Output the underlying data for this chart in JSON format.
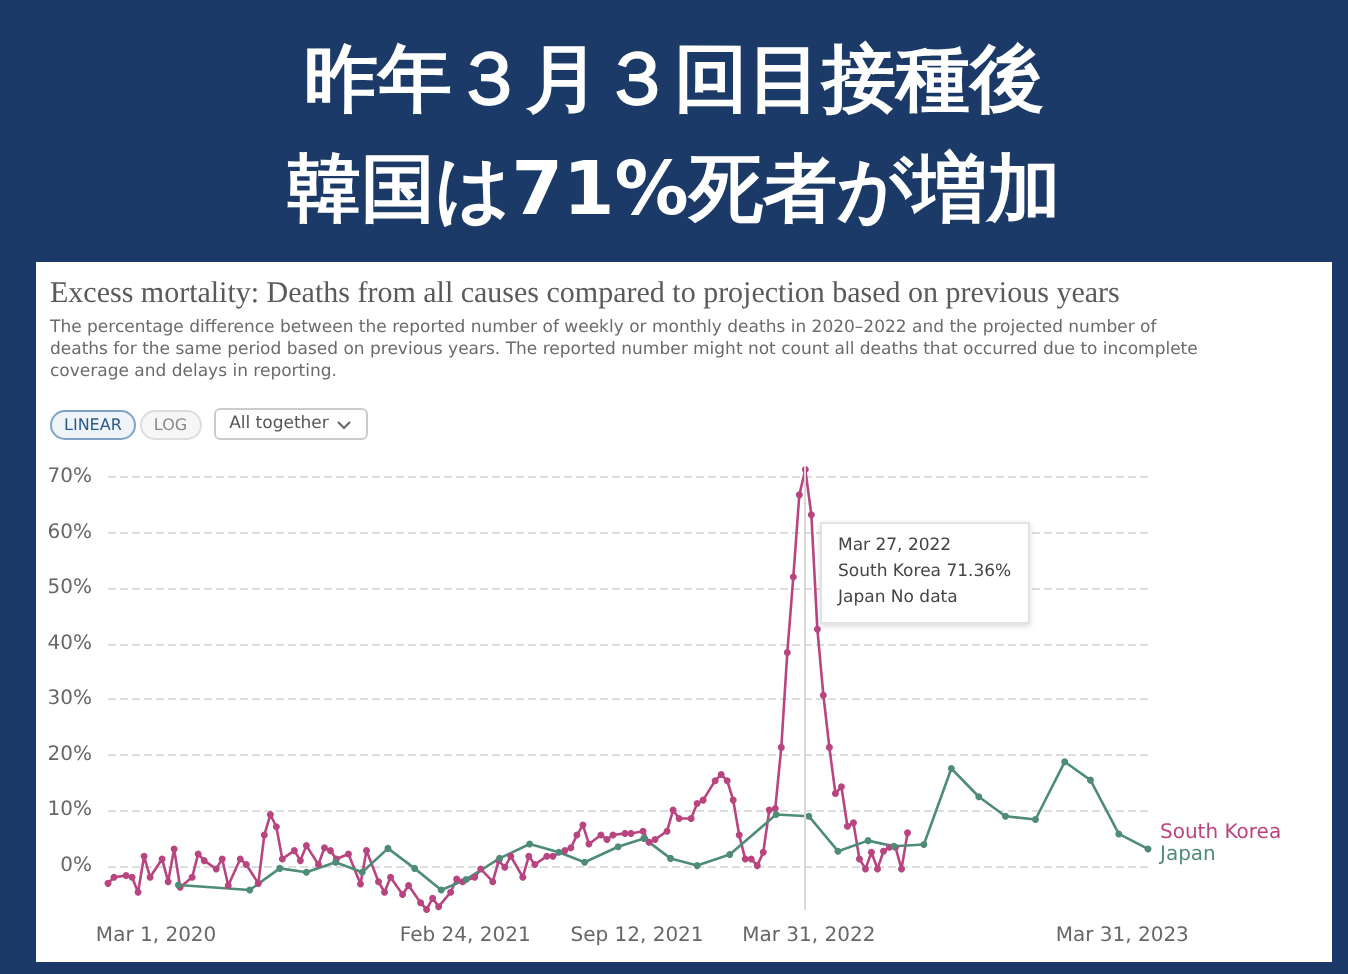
{
  "chart_data": {
    "type": "line",
    "title": "昨年３月３回目接種後",
    "subtitle": "韓国は71%死者が増加",
    "annotations": [
      "Excess mortality: Deaths from all causes compared to projection based on previous years",
      "The percentage difference between the reported number of weekly or monthly deaths in 2020–2022 and the projected number of deaths for the same period based on previous years. The reported number might not count all deaths that occurred due to incomplete coverage and delays in reporting.",
      "LINEAR",
      "LOG",
      "All together",
      "Mar 27, 2022\nSouth Korea 71.36%\nJapan No data"
    ],
    "xlim": [
      "2020-01-05",
      "2023-04-30"
    ],
    "xticks": [
      {
        "value": "2020-03-01",
        "label": "Mar 1, 2020"
      },
      {
        "value": "2021-02-24",
        "label": "Feb 24, 2021"
      },
      {
        "value": "2021-09-12",
        "label": "Sep 12, 2021"
      },
      {
        "value": "2022-03-31",
        "label": "Mar 31, 2022"
      },
      {
        "value": "2023-03-31",
        "label": "Mar 31, 2023"
      }
    ],
    "ylim": [
      -8,
      72
    ],
    "yticks": [
      {
        "value": 0,
        "label": "0%"
      },
      {
        "value": 10,
        "label": "10%"
      },
      {
        "value": 20,
        "label": "20%"
      },
      {
        "value": 30,
        "label": "30%"
      },
      {
        "value": 40,
        "label": "40%"
      },
      {
        "value": 50,
        "label": "50%"
      },
      {
        "value": 60,
        "label": "60%"
      },
      {
        "value": 70,
        "label": "70%"
      }
    ],
    "grid": "y",
    "marker": "circle",
    "line_style": "solid",
    "ref_lines": [
      {
        "axis": "x",
        "value": "2022-03-27",
        "label": null,
        "color": "#d9d9d9"
      }
    ],
    "series": [
      {
        "name": "South Korea",
        "color": "#b8457f",
        "x": [
          "2020-01-05",
          "2020-01-12",
          "2020-01-26",
          "2020-02-02",
          "2020-02-09",
          "2020-02-16",
          "2020-02-23",
          "2020-03-08",
          "2020-03-15",
          "2020-03-22",
          "2020-03-29",
          "2020-04-12",
          "2020-04-19",
          "2020-04-26",
          "2020-05-10",
          "2020-05-17",
          "2020-05-24",
          "2020-06-07",
          "2020-06-14",
          "2020-06-28",
          "2020-07-05",
          "2020-07-12",
          "2020-07-19",
          "2020-07-26",
          "2020-08-09",
          "2020-08-16",
          "2020-08-23",
          "2020-09-06",
          "2020-09-13",
          "2020-09-20",
          "2020-09-27",
          "2020-10-11",
          "2020-10-25",
          "2020-11-01",
          "2020-11-15",
          "2020-11-22",
          "2020-11-29",
          "2020-12-13",
          "2020-12-20",
          "2021-01-03",
          "2021-01-10",
          "2021-01-17",
          "2021-01-24",
          "2021-02-07",
          "2021-02-14",
          "2021-02-21",
          "2021-03-07",
          "2021-03-14",
          "2021-03-28",
          "2021-04-04",
          "2021-04-11",
          "2021-04-18",
          "2021-05-02",
          "2021-05-09",
          "2021-05-16",
          "2021-05-30",
          "2021-06-06",
          "2021-06-20",
          "2021-06-27",
          "2021-07-04",
          "2021-07-11",
          "2021-07-18",
          "2021-08-01",
          "2021-08-08",
          "2021-08-15",
          "2021-08-29",
          "2021-09-05",
          "2021-09-19",
          "2021-09-26",
          "2021-10-03",
          "2021-10-17",
          "2021-10-24",
          "2021-10-31",
          "2021-11-14",
          "2021-11-21",
          "2021-11-28",
          "2021-12-12",
          "2021-12-19",
          "2021-12-26",
          "2022-01-02",
          "2022-01-09",
          "2022-01-16",
          "2022-01-23",
          "2022-01-30",
          "2022-02-06",
          "2022-02-13",
          "2022-02-20",
          "2022-02-27",
          "2022-03-06",
          "2022-03-13",
          "2022-03-20",
          "2022-03-27",
          "2022-04-03",
          "2022-04-10",
          "2022-04-17",
          "2022-04-24",
          "2022-05-01",
          "2022-05-08",
          "2022-05-15",
          "2022-05-22",
          "2022-05-29",
          "2022-06-05",
          "2022-06-12",
          "2022-06-19",
          "2022-06-26",
          "2022-07-03",
          "2022-07-10",
          "2022-07-17",
          "2022-07-24"
        ],
        "values": [
          -3.2,
          -2.1,
          -1.8,
          -2.1,
          -4.8,
          1.7,
          -2.1,
          1.2,
          -2.9,
          3.0,
          -3.9,
          -2.1,
          2.1,
          0.9,
          -0.6,
          1.2,
          -3.6,
          1.2,
          0.2,
          -3.2,
          5.5,
          9.2,
          7.0,
          1.2,
          2.7,
          0.9,
          3.6,
          0.2,
          3.2,
          2.7,
          1.2,
          2.1,
          -3.3,
          2.7,
          -2.9,
          -4.8,
          -2.1,
          -5.2,
          -3.6,
          -6.7,
          -7.9,
          -5.9,
          -7.4,
          -4.8,
          -2.4,
          -2.9,
          -2.1,
          -0.6,
          -2.9,
          0.9,
          -0.3,
          1.7,
          -2.1,
          1.7,
          0.2,
          1.7,
          1.7,
          2.7,
          3.2,
          5.5,
          7.3,
          3.9,
          5.5,
          4.7,
          5.5,
          5.8,
          5.8,
          6.2,
          4.2,
          4.7,
          6.2,
          10.0,
          8.5,
          8.5,
          11.2,
          11.8,
          15.3,
          16.4,
          15.3,
          11.8,
          5.5,
          1.2,
          1.2,
          0,
          2.4,
          10.0,
          10.3,
          21.3,
          38.4,
          52.0,
          66.8,
          71.36,
          63.2,
          42.6,
          30.7,
          21.3,
          13.0,
          14.2,
          7.1,
          7.7,
          1.2,
          -0.6,
          2.4,
          -0.6,
          2.6,
          3.3,
          3.3,
          -0.6,
          5.9
        ]
      },
      {
        "name": "Japan",
        "color": "#4f8c78",
        "x": [
          "2020-03-27",
          "2020-06-18",
          "2020-07-23",
          "2020-08-23",
          "2020-09-26",
          "2020-10-27",
          "2020-11-26",
          "2020-12-27",
          "2021-01-27",
          "2021-02-25",
          "2021-04-05",
          "2021-05-10",
          "2021-06-13",
          "2021-07-13",
          "2021-08-21",
          "2021-09-20",
          "2021-10-21",
          "2021-11-21",
          "2021-12-29",
          "2022-02-21",
          "2022-03-31",
          "2022-05-04",
          "2022-06-08",
          "2022-07-08",
          "2022-08-12",
          "2022-09-13",
          "2022-10-15",
          "2022-11-15",
          "2022-12-20",
          "2023-01-23",
          "2023-02-22",
          "2023-03-27",
          "2023-04-30"
        ],
        "values": [
          -3.5,
          -4.4,
          -0.5,
          -1.2,
          0.6,
          -1.2,
          3.1,
          -0.5,
          -4.4,
          -2.5,
          1.3,
          3.9,
          2.4,
          0.6,
          3.4,
          4.9,
          1.3,
          0,
          2.0,
          9.2,
          8.9,
          2.6,
          4.5,
          3.5,
          3.8,
          17.5,
          12.4,
          8.9,
          8.3,
          18.7,
          15.4,
          5.7,
          3.0
        ]
      }
    ]
  }
}
